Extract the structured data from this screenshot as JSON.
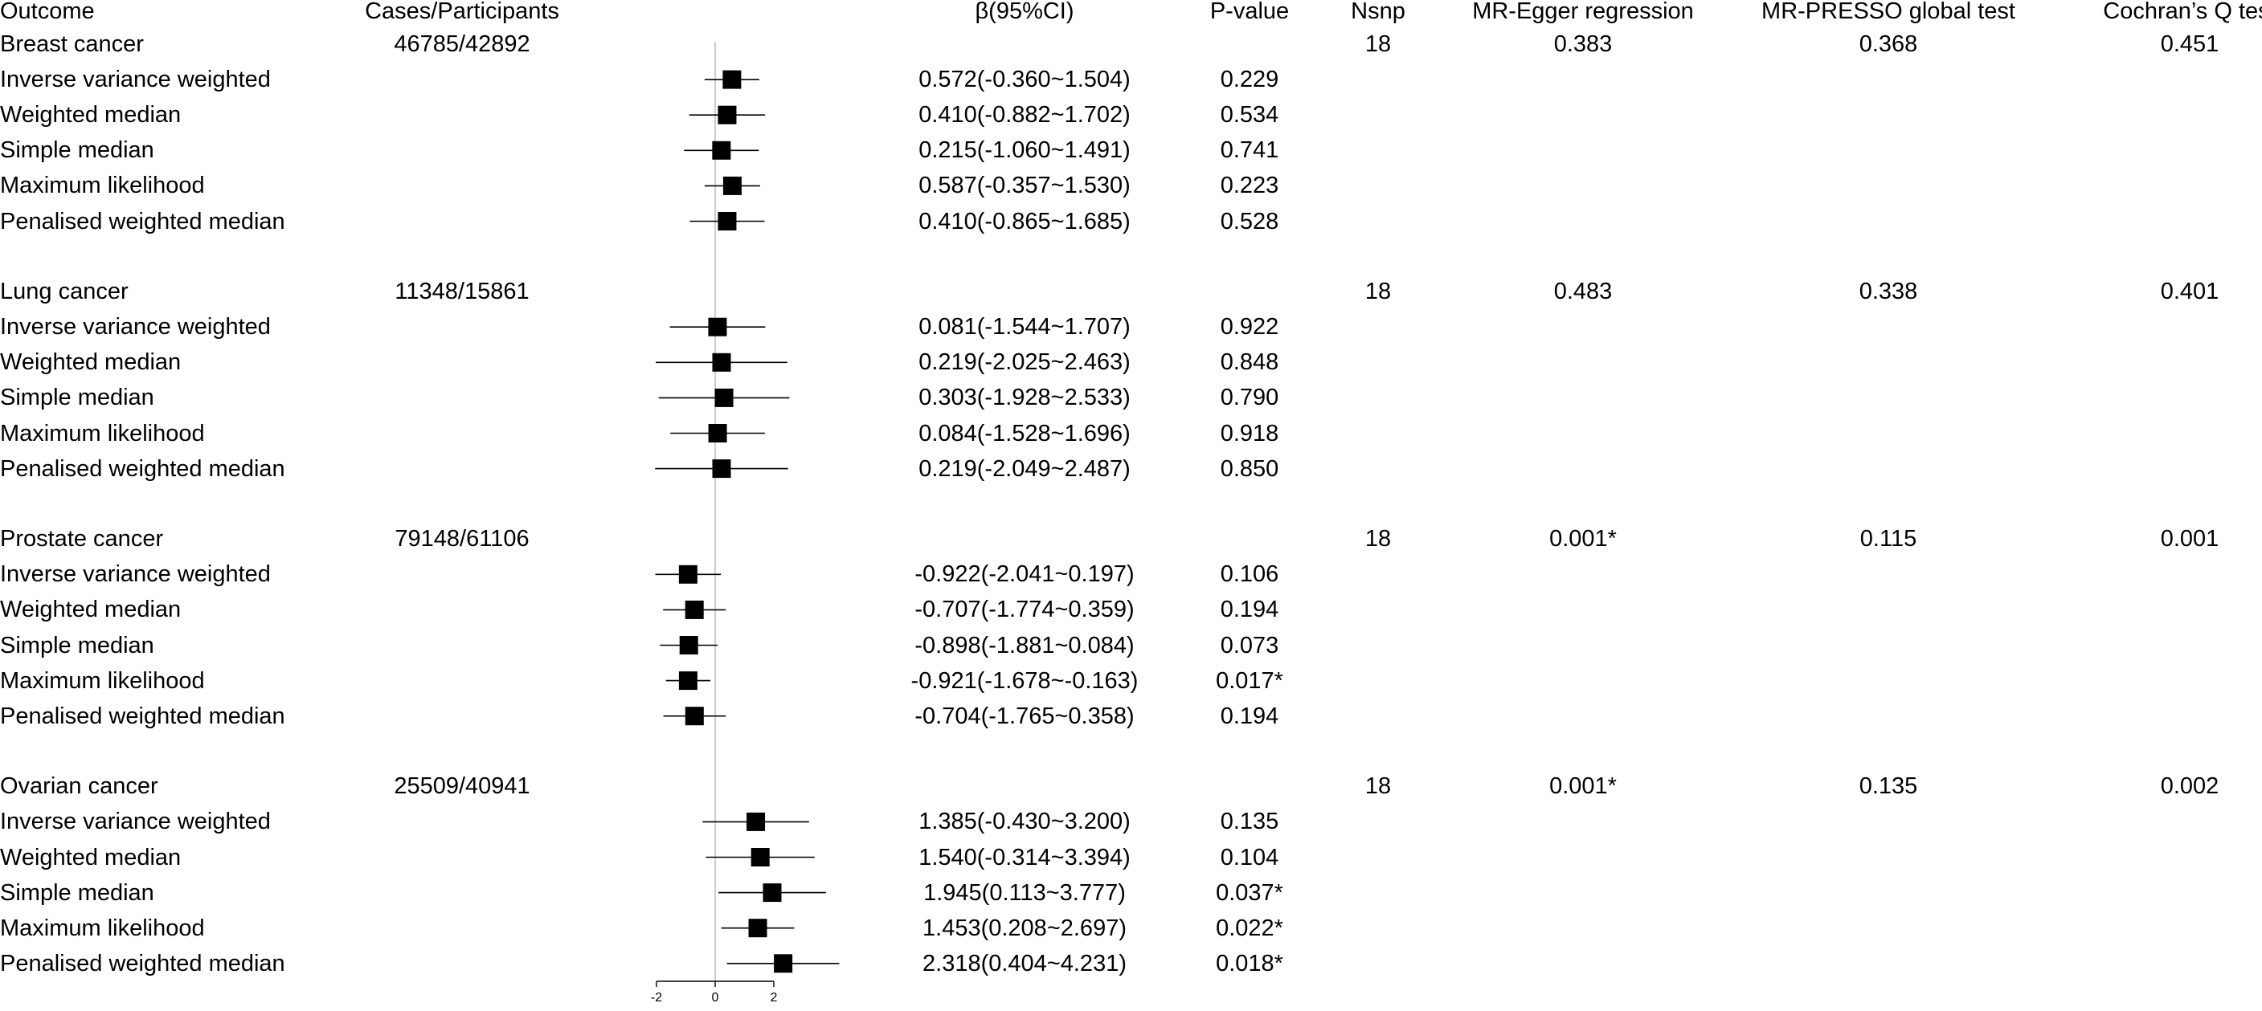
{
  "headers": {
    "outcome": "Outcome",
    "cases": "Cases/Participants",
    "beta": "β(95%CI)",
    "pvalue": "P-value",
    "nsnp": "Nsnp",
    "egger": "MR-Egger regression",
    "presso": "MR-PRESSO global test",
    "cochran": "Cochran’s Q test"
  },
  "chart_data": {
    "type": "forest",
    "xlim": [
      -2,
      2
    ],
    "xticks": [
      "-2",
      "0",
      "2"
    ],
    "reference_line": 0,
    "groups": [
      {
        "outcome": "Breast cancer",
        "cases": "46785/42892",
        "nsnp": "18",
        "egger": "0.383",
        "presso": "0.368",
        "cochran": "0.451",
        "methods": [
          {
            "name": "Inverse variance weighted",
            "beta": 0.572,
            "lo": -0.36,
            "hi": 1.504,
            "ci_text": "0.572(-0.360~1.504)",
            "p": "0.229"
          },
          {
            "name": "Weighted median",
            "beta": 0.41,
            "lo": -0.882,
            "hi": 1.702,
            "ci_text": "0.410(-0.882~1.702)",
            "p": "0.534"
          },
          {
            "name": "Simple median",
            "beta": 0.215,
            "lo": -1.06,
            "hi": 1.491,
            "ci_text": "0.215(-1.060~1.491)",
            "p": "0.741"
          },
          {
            "name": "Maximum likelihood",
            "beta": 0.587,
            "lo": -0.357,
            "hi": 1.53,
            "ci_text": "0.587(-0.357~1.530)",
            "p": "0.223"
          },
          {
            "name": "Penalised weighted median",
            "beta": 0.41,
            "lo": -0.865,
            "hi": 1.685,
            "ci_text": "0.410(-0.865~1.685)",
            "p": "0.528"
          }
        ]
      },
      {
        "outcome": "Lung cancer",
        "cases": "11348/15861",
        "nsnp": "18",
        "egger": "0.483",
        "presso": "0.338",
        "cochran": "0.401",
        "methods": [
          {
            "name": "Inverse variance weighted",
            "beta": 0.081,
            "lo": -1.544,
            "hi": 1.707,
            "ci_text": "0.081(-1.544~1.707)",
            "p": "0.922"
          },
          {
            "name": "Weighted median",
            "beta": 0.219,
            "lo": -2.025,
            "hi": 2.463,
            "ci_text": "0.219(-2.025~2.463)",
            "p": "0.848"
          },
          {
            "name": "Simple median",
            "beta": 0.303,
            "lo": -1.928,
            "hi": 2.533,
            "ci_text": "0.303(-1.928~2.533)",
            "p": "0.790"
          },
          {
            "name": "Maximum likelihood",
            "beta": 0.084,
            "lo": -1.528,
            "hi": 1.696,
            "ci_text": "0.084(-1.528~1.696)",
            "p": "0.918"
          },
          {
            "name": "Penalised weighted median",
            "beta": 0.219,
            "lo": -2.049,
            "hi": 2.487,
            "ci_text": "0.219(-2.049~2.487)",
            "p": "0.850"
          }
        ]
      },
      {
        "outcome": "Prostate cancer",
        "cases": "79148/61106",
        "nsnp": "18",
        "egger": "0.001*",
        "presso": "0.115",
        "cochran": "0.001",
        "methods": [
          {
            "name": "Inverse variance weighted",
            "beta": -0.922,
            "lo": -2.041,
            "hi": 0.197,
            "ci_text": "-0.922(-2.041~0.197)",
            "p": "0.106"
          },
          {
            "name": "Weighted median",
            "beta": -0.707,
            "lo": -1.774,
            "hi": 0.359,
            "ci_text": "-0.707(-1.774~0.359)",
            "p": "0.194"
          },
          {
            "name": "Simple median",
            "beta": -0.898,
            "lo": -1.881,
            "hi": 0.084,
            "ci_text": "-0.898(-1.881~0.084)",
            "p": "0.073"
          },
          {
            "name": "Maximum likelihood",
            "beta": -0.921,
            "lo": -1.678,
            "hi": -0.163,
            "ci_text": "-0.921(-1.678~-0.163)",
            "p": "0.017*"
          },
          {
            "name": "Penalised weighted median",
            "beta": -0.704,
            "lo": -1.765,
            "hi": 0.358,
            "ci_text": "-0.704(-1.765~0.358)",
            "p": "0.194"
          }
        ]
      },
      {
        "outcome": "Ovarian cancer",
        "cases": "25509/40941",
        "nsnp": "18",
        "egger": "0.001*",
        "presso": "0.135",
        "cochran": "0.002",
        "methods": [
          {
            "name": "Inverse variance weighted",
            "beta": 1.385,
            "lo": -0.43,
            "hi": 3.2,
            "ci_text": "1.385(-0.430~3.200)",
            "p": "0.135"
          },
          {
            "name": "Weighted median",
            "beta": 1.54,
            "lo": -0.314,
            "hi": 3.394,
            "ci_text": "1.540(-0.314~3.394)",
            "p": "0.104"
          },
          {
            "name": "Simple median",
            "beta": 1.945,
            "lo": 0.113,
            "hi": 3.777,
            "ci_text": "1.945(0.113~3.777)",
            "p": "0.037*"
          },
          {
            "name": "Maximum likelihood",
            "beta": 1.453,
            "lo": 0.208,
            "hi": 2.697,
            "ci_text": "1.453(0.208~2.697)",
            "p": "0.022*"
          },
          {
            "name": "Penalised weighted median",
            "beta": 2.318,
            "lo": 0.404,
            "hi": 4.231,
            "ci_text": "2.318(0.404~4.231)",
            "p": "0.018*"
          }
        ]
      }
    ]
  }
}
